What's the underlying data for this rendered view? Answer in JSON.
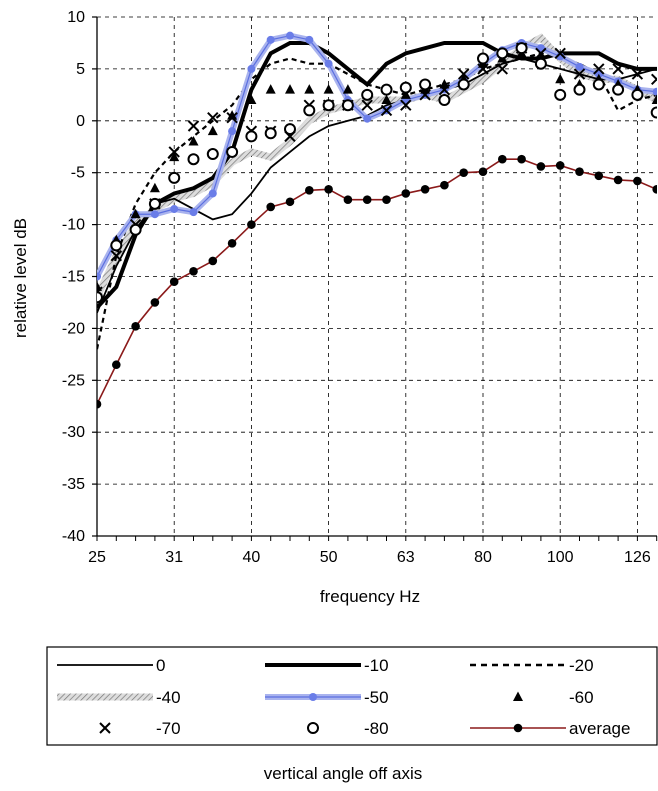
{
  "chart_data": {
    "type": "line",
    "title": "",
    "xlabel": "frequency Hz",
    "ylabel": "relative level dB",
    "legend_title": "vertical angle off axis",
    "legend_position": "bottom",
    "grid": true,
    "ylim": [
      -40,
      10
    ],
    "yticks": [
      10,
      5,
      0,
      -5,
      -10,
      -15,
      -20,
      -25,
      -30,
      -35,
      -40
    ],
    "x": [
      "25",
      "26.5",
      "28",
      "30",
      "31",
      "33.5",
      "35.5",
      "37.5",
      "40",
      "42.5",
      "45",
      "47.5",
      "50",
      "53",
      "56",
      "60",
      "63",
      "67",
      "71",
      "75",
      "80",
      "85",
      "90",
      "95",
      "100",
      "106",
      "112",
      "118",
      "126",
      "133",
      "140"
    ],
    "xtick_labels": [
      "25",
      "31",
      "40",
      "50",
      "63",
      "80",
      "100",
      "126"
    ],
    "series": [
      {
        "name": "0",
        "style": "solid-thin",
        "color": "#000000",
        "values": [
          -18.5,
          -14,
          -10.5,
          -8,
          -7.5,
          -8.5,
          -9.5,
          -9,
          -7,
          -4.5,
          -3,
          -1.5,
          -0.5,
          0,
          0.5,
          1.5,
          2,
          2.5,
          3,
          3.5,
          4.5,
          5.5,
          6,
          5.5,
          5,
          4.5,
          4,
          4,
          4.5,
          5,
          5.5
        ]
      },
      {
        "name": "-10",
        "style": "solid-thick",
        "color": "#000000",
        "values": [
          -18,
          -16,
          -11,
          -8,
          -7,
          -6.5,
          -5.5,
          -3,
          3,
          6.5,
          7.5,
          7.5,
          6.5,
          5,
          3.5,
          5.5,
          6.5,
          7,
          7.5,
          7.5,
          7.5,
          6.5,
          6,
          6,
          6.5,
          6.5,
          6.5,
          5.5,
          5,
          5,
          5.5
        ]
      },
      {
        "name": "-20",
        "style": "dashed",
        "color": "#000000",
        "values": [
          -22,
          -13,
          -8,
          -5,
          -3,
          -1.5,
          0,
          1.5,
          4,
          5.5,
          6,
          5.5,
          5.5,
          4.5,
          3.5,
          3,
          2.5,
          3,
          3.5,
          4,
          5,
          5.5,
          6,
          6.5,
          6,
          5.5,
          4.5,
          1,
          2,
          2.5,
          3
        ]
      },
      {
        "name": "-40",
        "style": "hatched",
        "color": "#bbbbbb",
        "values": [
          -17,
          -13,
          -10,
          -8.5,
          -7.5,
          -7,
          -6,
          -4,
          -3,
          -3.5,
          -2,
          0,
          1,
          1.5,
          2,
          2,
          2,
          2.5,
          2,
          3,
          4,
          5.5,
          7,
          8,
          6,
          4.5,
          4,
          4,
          3,
          2,
          2
        ]
      },
      {
        "name": "-50",
        "style": "blue-band",
        "color": "#6a7de8",
        "values": [
          -15,
          -11.5,
          -9,
          -9,
          -8.5,
          -8.8,
          -7,
          -1,
          5,
          7.8,
          8.2,
          7.8,
          5.5,
          2,
          0.2,
          1,
          2,
          2.5,
          3,
          4,
          5.5,
          6.8,
          7.5,
          7,
          6.2,
          5.2,
          4.5,
          3.8,
          3,
          2.8,
          2.5
        ]
      },
      {
        "name": "-60",
        "style": "triangle",
        "color": "#000000",
        "values": [
          -16,
          -11.5,
          -9,
          -6.5,
          -3.5,
          -2,
          -1,
          0.5,
          2,
          3,
          3,
          3,
          3,
          3,
          2.5,
          2,
          2.5,
          3,
          3.5,
          4,
          5.5,
          6,
          6.5,
          6,
          4,
          3.5,
          4,
          3.5,
          3,
          2,
          2
        ]
      },
      {
        "name": "-70",
        "style": "cross",
        "color": "#000000",
        "values": [
          -16.5,
          -13,
          -10,
          -8,
          -3,
          -0.5,
          0.3,
          0.3,
          -1,
          -1,
          -1.5,
          1.5,
          1.5,
          1.5,
          1.5,
          1,
          1.5,
          2.5,
          3,
          4.5,
          5,
          5,
          7,
          6.5,
          6.5,
          4.5,
          5,
          5,
          4.5,
          4,
          3
        ]
      },
      {
        "name": "-80",
        "style": "circle-open",
        "color": "#000000",
        "values": [
          -17,
          -12,
          -10.5,
          -8,
          -5.5,
          -3.7,
          -3.2,
          -3,
          -1.5,
          -1.2,
          -0.8,
          1,
          1.5,
          1.5,
          2.5,
          3,
          3.2,
          3.5,
          2,
          3.5,
          6,
          6.5,
          7,
          5.5,
          2.5,
          3,
          3.5,
          3,
          2.5,
          0.8,
          1
        ]
      },
      {
        "name": "average",
        "style": "average",
        "color": "#8b1a1a",
        "values": [
          -27.3,
          -23.5,
          -19.8,
          -17.5,
          -15.5,
          -14.5,
          -13.5,
          -11.8,
          -10,
          -8.3,
          -7.8,
          -6.7,
          -6.6,
          -7.6,
          -7.6,
          -7.6,
          -7,
          -6.6,
          -6.2,
          -5,
          -4.9,
          -3.7,
          -3.7,
          -4.4,
          -4.3,
          -4.9,
          -5.3,
          -5.7,
          -5.8,
          -6.6,
          -6.8
        ]
      }
    ]
  }
}
